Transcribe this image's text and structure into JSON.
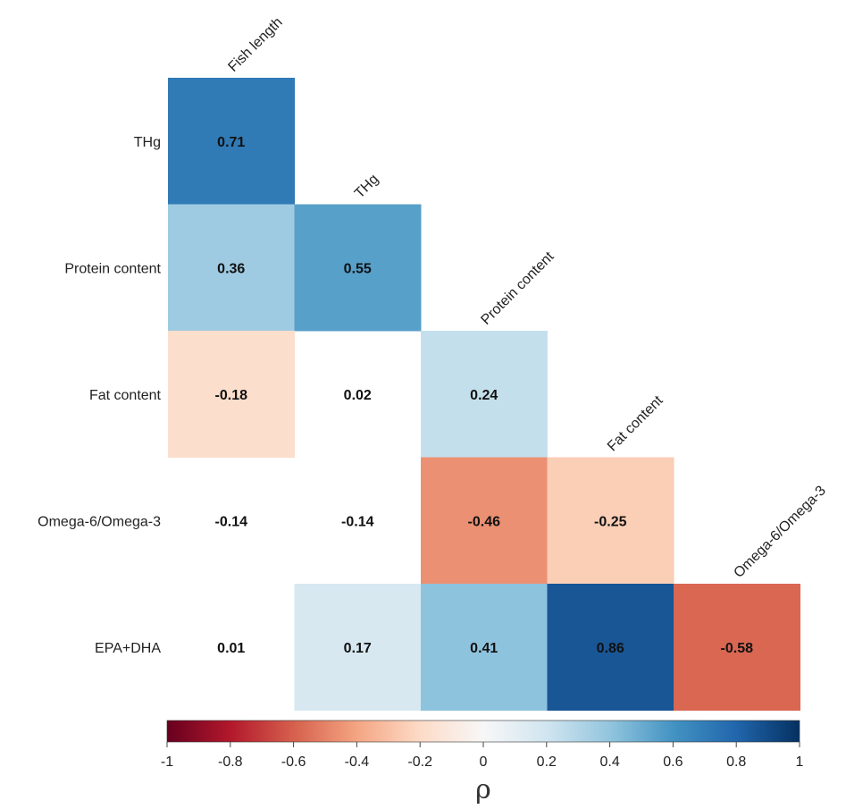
{
  "chart_data": {
    "type": "heatmap",
    "variables": [
      "Fish length",
      "THg",
      "Protein content",
      "Fat content",
      "Omega-6/Omega-3",
      "EPA+DHA"
    ],
    "row_labels": [
      "THg",
      "Protein content",
      "Fat content",
      "Omega-6/Omega-3",
      "EPA+DHA"
    ],
    "column_labels": [
      "Fish length",
      "THg",
      "Protein content",
      "Fat content",
      "Omega-6/Omega-3"
    ],
    "values": [
      [
        0.71,
        null,
        null,
        null,
        null
      ],
      [
        0.36,
        0.55,
        null,
        null,
        null
      ],
      [
        -0.18,
        0.02,
        0.24,
        null,
        null
      ],
      [
        -0.14,
        -0.14,
        -0.46,
        -0.25,
        null
      ],
      [
        0.01,
        0.17,
        0.41,
        0.86,
        -0.58
      ]
    ],
    "value_labels": [
      [
        "0.71",
        null,
        null,
        null,
        null
      ],
      [
        "0.36",
        "0.55",
        null,
        null,
        null
      ],
      [
        "-0.18",
        "0.02",
        "0.24",
        null,
        null
      ],
      [
        "-0.14",
        "-0.14",
        "-0.46",
        "-0.25",
        null
      ],
      [
        "0.01",
        "0.17",
        "0.41",
        "0.86",
        "-0.58"
      ]
    ],
    "significant": [
      [
        true,
        null,
        null,
        null,
        null
      ],
      [
        true,
        true,
        null,
        null,
        null
      ],
      [
        true,
        false,
        true,
        null,
        null
      ],
      [
        false,
        false,
        true,
        true,
        null
      ],
      [
        false,
        true,
        true,
        true,
        true
      ]
    ],
    "colorbar": {
      "title": "ρ",
      "range": [
        -1,
        1
      ],
      "ticks": [
        "-1",
        "-0.8",
        "-0.6",
        "-0.4",
        "-0.2",
        "0",
        "0.2",
        "0.4",
        "0.6",
        "0.8",
        "1"
      ],
      "colors": [
        "#67001f",
        "#b2182b",
        "#d6604d",
        "#f4a582",
        "#fddbc7",
        "#f7f7f7",
        "#d1e5f0",
        "#92c5de",
        "#4393c3",
        "#2166ac",
        "#053061"
      ]
    },
    "legend_position": "bottom"
  }
}
